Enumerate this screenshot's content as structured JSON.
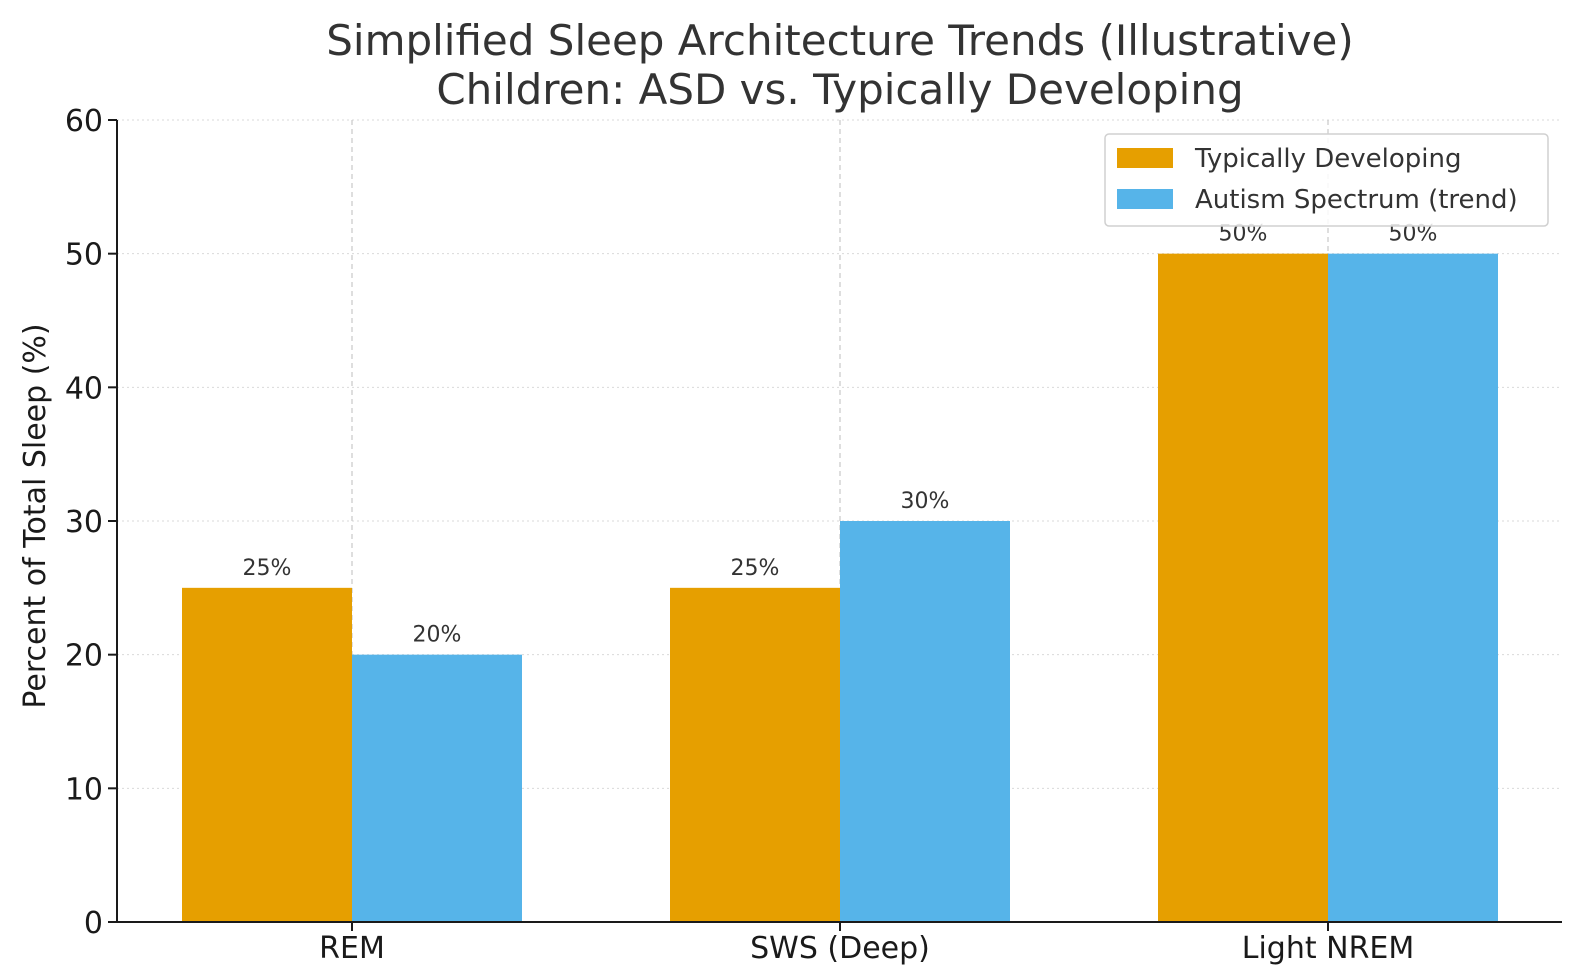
{
  "chart_data": {
    "type": "bar",
    "title_lines": [
      "Simplified Sleep Architecture Trends (Illustrative)",
      "Children: ASD vs. Typically Developing"
    ],
    "xlabel": "",
    "ylabel": "Percent of Total Sleep (%)",
    "categories": [
      "REM",
      "SWS (Deep)",
      "Light NREM"
    ],
    "series": [
      {
        "name": "Typically Developing",
        "values": [
          25,
          25,
          50
        ],
        "color": "#E69F00",
        "labels": [
          "25%",
          "25%",
          "50%"
        ]
      },
      {
        "name": "Autism Spectrum (trend)",
        "values": [
          20,
          30,
          50
        ],
        "color": "#56B4E9",
        "labels": [
          "20%",
          "30%",
          "50%"
        ]
      }
    ],
    "ylim": [
      0,
      60
    ],
    "yticks": [
      0,
      10,
      20,
      30,
      40,
      50,
      60
    ],
    "grid": true,
    "legend_position": "top-right"
  }
}
